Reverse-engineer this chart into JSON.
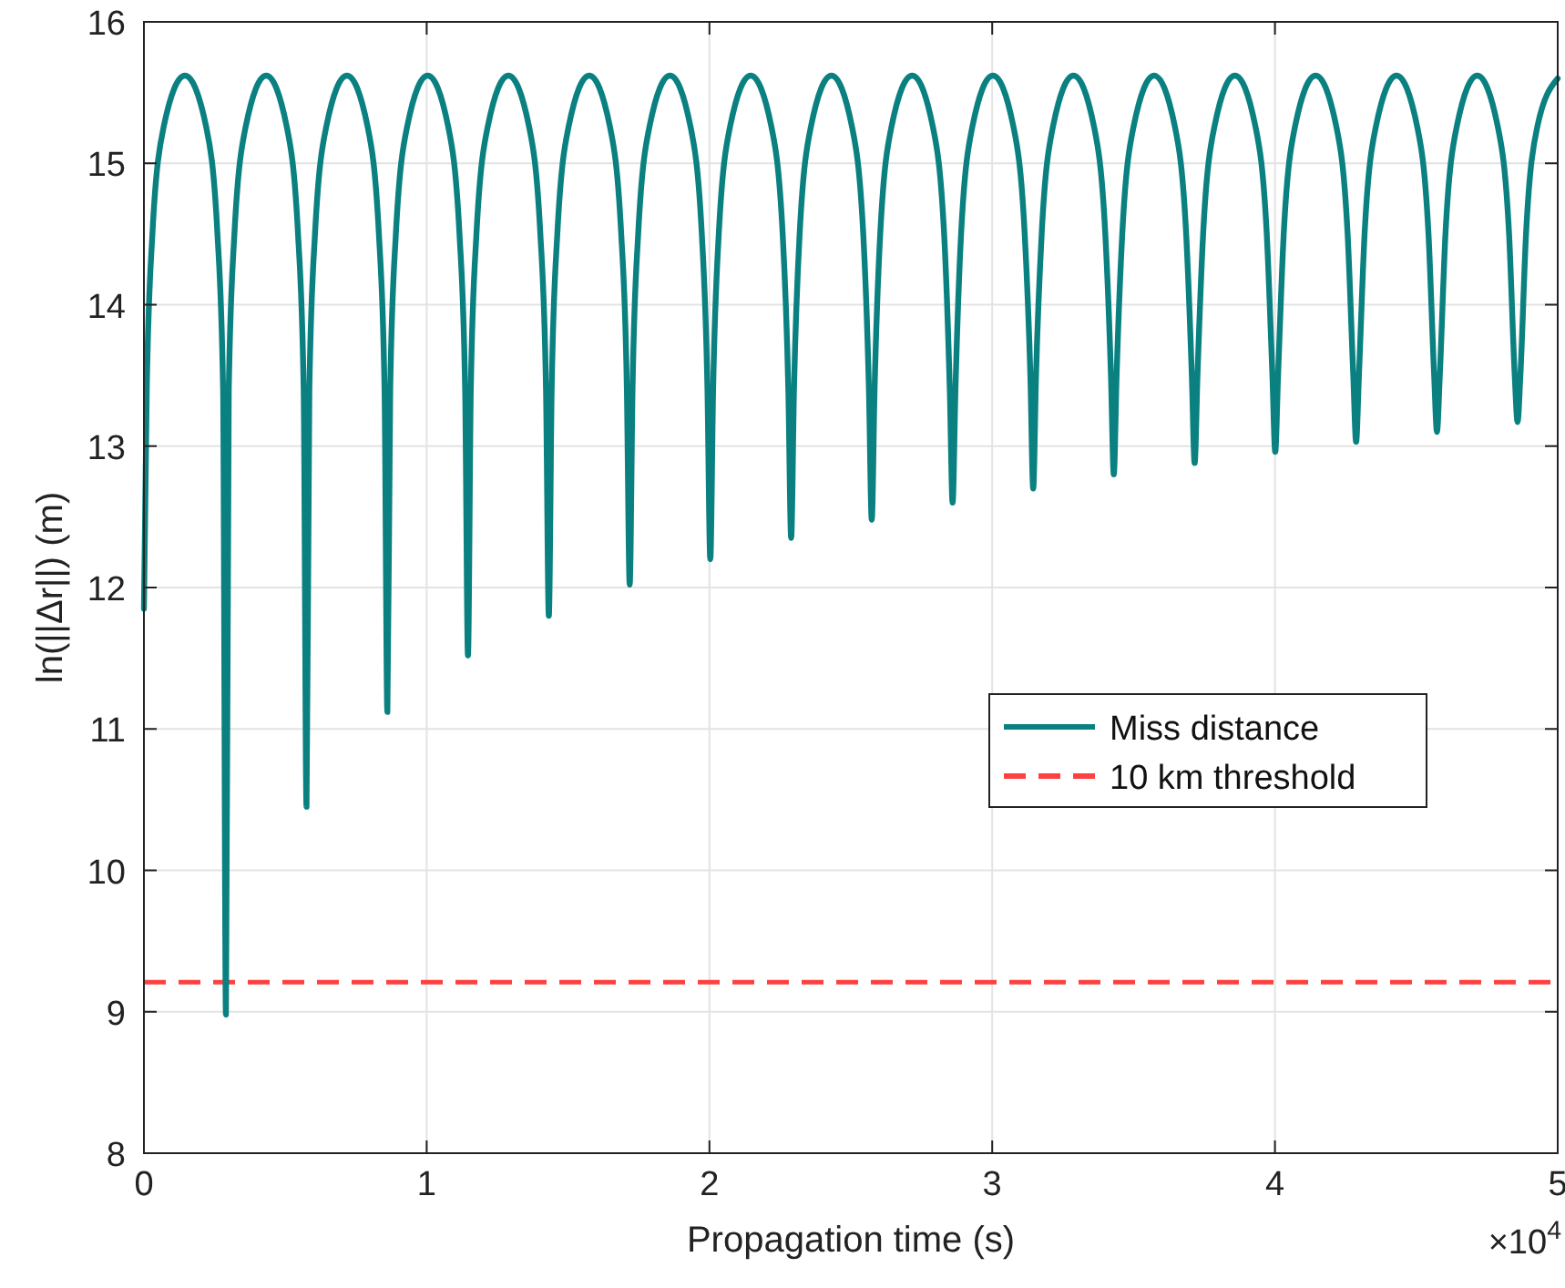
{
  "chart_data": {
    "type": "line",
    "xlabel": "Propagation time (s)",
    "ylabel": "ln(||Δr||) (m)",
    "x": [
      0,
      0.01,
      0.03,
      0.07,
      0.145,
      0.22,
      0.26,
      0.28,
      0.29,
      0.3,
      0.32,
      0.36,
      0.4325,
      0.505,
      0.545,
      0.565,
      0.575,
      0.585,
      0.605,
      0.645,
      0.718,
      0.791,
      0.831,
      0.851,
      0.861,
      0.871,
      0.891,
      0.931,
      1.0035,
      1.076,
      1.116,
      1.136,
      1.146,
      1.156,
      1.176,
      1.216,
      1.289,
      1.362,
      1.402,
      1.422,
      1.432,
      1.442,
      1.462,
      1.502,
      1.575,
      1.648,
      1.688,
      1.708,
      1.718,
      1.728,
      1.748,
      1.788,
      1.8605,
      1.933,
      1.973,
      1.993,
      2.003,
      2.013,
      2.033,
      2.073,
      2.146,
      2.219,
      2.259,
      2.279,
      2.289,
      2.299,
      2.319,
      2.359,
      2.4315,
      2.504,
      2.544,
      2.564,
      2.574,
      2.584,
      2.604,
      2.644,
      2.717,
      2.79,
      2.83,
      2.85,
      2.86,
      2.87,
      2.89,
      2.93,
      3.0025,
      3.075,
      3.115,
      3.135,
      3.145,
      3.155,
      3.175,
      3.215,
      3.2875,
      3.36,
      3.4,
      3.42,
      3.43,
      3.44,
      3.46,
      3.5,
      3.573,
      3.646,
      3.686,
      3.706,
      3.716,
      3.726,
      3.746,
      3.786,
      3.8585,
      3.931,
      3.971,
      3.991,
      4.001,
      4.011,
      4.031,
      4.071,
      4.144,
      4.217,
      4.257,
      4.277,
      4.287,
      4.297,
      4.317,
      4.357,
      4.43,
      4.503,
      4.543,
      4.563,
      4.573,
      4.583,
      4.603,
      4.643,
      4.7155,
      4.788,
      4.828,
      4.848,
      4.858,
      4.868,
      4.888,
      4.928,
      5
    ],
    "series": [
      {
        "name": "Miss distance",
        "color": "#0a8080",
        "values": [
          11.85,
          13.4,
          14.5,
          15.26,
          15.62,
          15.26,
          14.5,
          13.4,
          8.98,
          13.4,
          14.5,
          15.26,
          15.62,
          15.26,
          14.5,
          13.4,
          10.45,
          13.4,
          14.5,
          15.26,
          15.62,
          15.26,
          14.5,
          13.4,
          11.12,
          13.4,
          14.5,
          15.26,
          15.62,
          15.26,
          14.5,
          13.4,
          11.52,
          13.4,
          14.5,
          15.26,
          15.62,
          15.26,
          14.5,
          13.4,
          11.8,
          13.4,
          14.5,
          15.26,
          15.62,
          15.26,
          14.5,
          13.4,
          12.02,
          13.4,
          14.5,
          15.26,
          15.62,
          15.26,
          14.5,
          13.4,
          12.2,
          13.4,
          14.5,
          15.26,
          15.62,
          15.26,
          14.5,
          13.4,
          12.35,
          13.4,
          14.5,
          15.26,
          15.62,
          15.26,
          14.5,
          13.4,
          12.48,
          13.4,
          14.5,
          15.26,
          15.62,
          15.26,
          14.5,
          13.4,
          12.6,
          13.4,
          14.5,
          15.26,
          15.62,
          15.26,
          14.5,
          13.5,
          12.7,
          13.5,
          14.5,
          15.26,
          15.62,
          15.26,
          14.5,
          13.5,
          12.8,
          13.5,
          14.5,
          15.26,
          15.62,
          15.26,
          14.5,
          13.5,
          12.88,
          13.5,
          14.5,
          15.26,
          15.62,
          15.26,
          14.5,
          13.5,
          12.96,
          13.5,
          14.5,
          15.26,
          15.62,
          15.26,
          14.5,
          13.5,
          13.03,
          13.5,
          14.5,
          15.26,
          15.62,
          15.26,
          14.5,
          13.5,
          13.1,
          13.5,
          14.5,
          15.26,
          15.62,
          15.26,
          14.5,
          13.5,
          13.17,
          13.5,
          14.5,
          15.26,
          15.6
        ]
      }
    ],
    "ref_lines": [
      {
        "axis": "y",
        "value": 9.21,
        "label": "10 km threshold",
        "color": "#ff4040",
        "line_style": "dashed"
      }
    ],
    "xlim": [
      0,
      5
    ],
    "xticks": [
      0,
      1,
      2,
      3,
      4,
      5
    ],
    "ylim": [
      8,
      16
    ],
    "yticks": [
      8,
      9,
      10,
      11,
      12,
      13,
      14,
      15,
      16
    ],
    "annotations": [
      "×10$^{4}$"
    ],
    "grid": true,
    "legend": "right",
    "line_style": "solid",
    "marker": "none"
  }
}
